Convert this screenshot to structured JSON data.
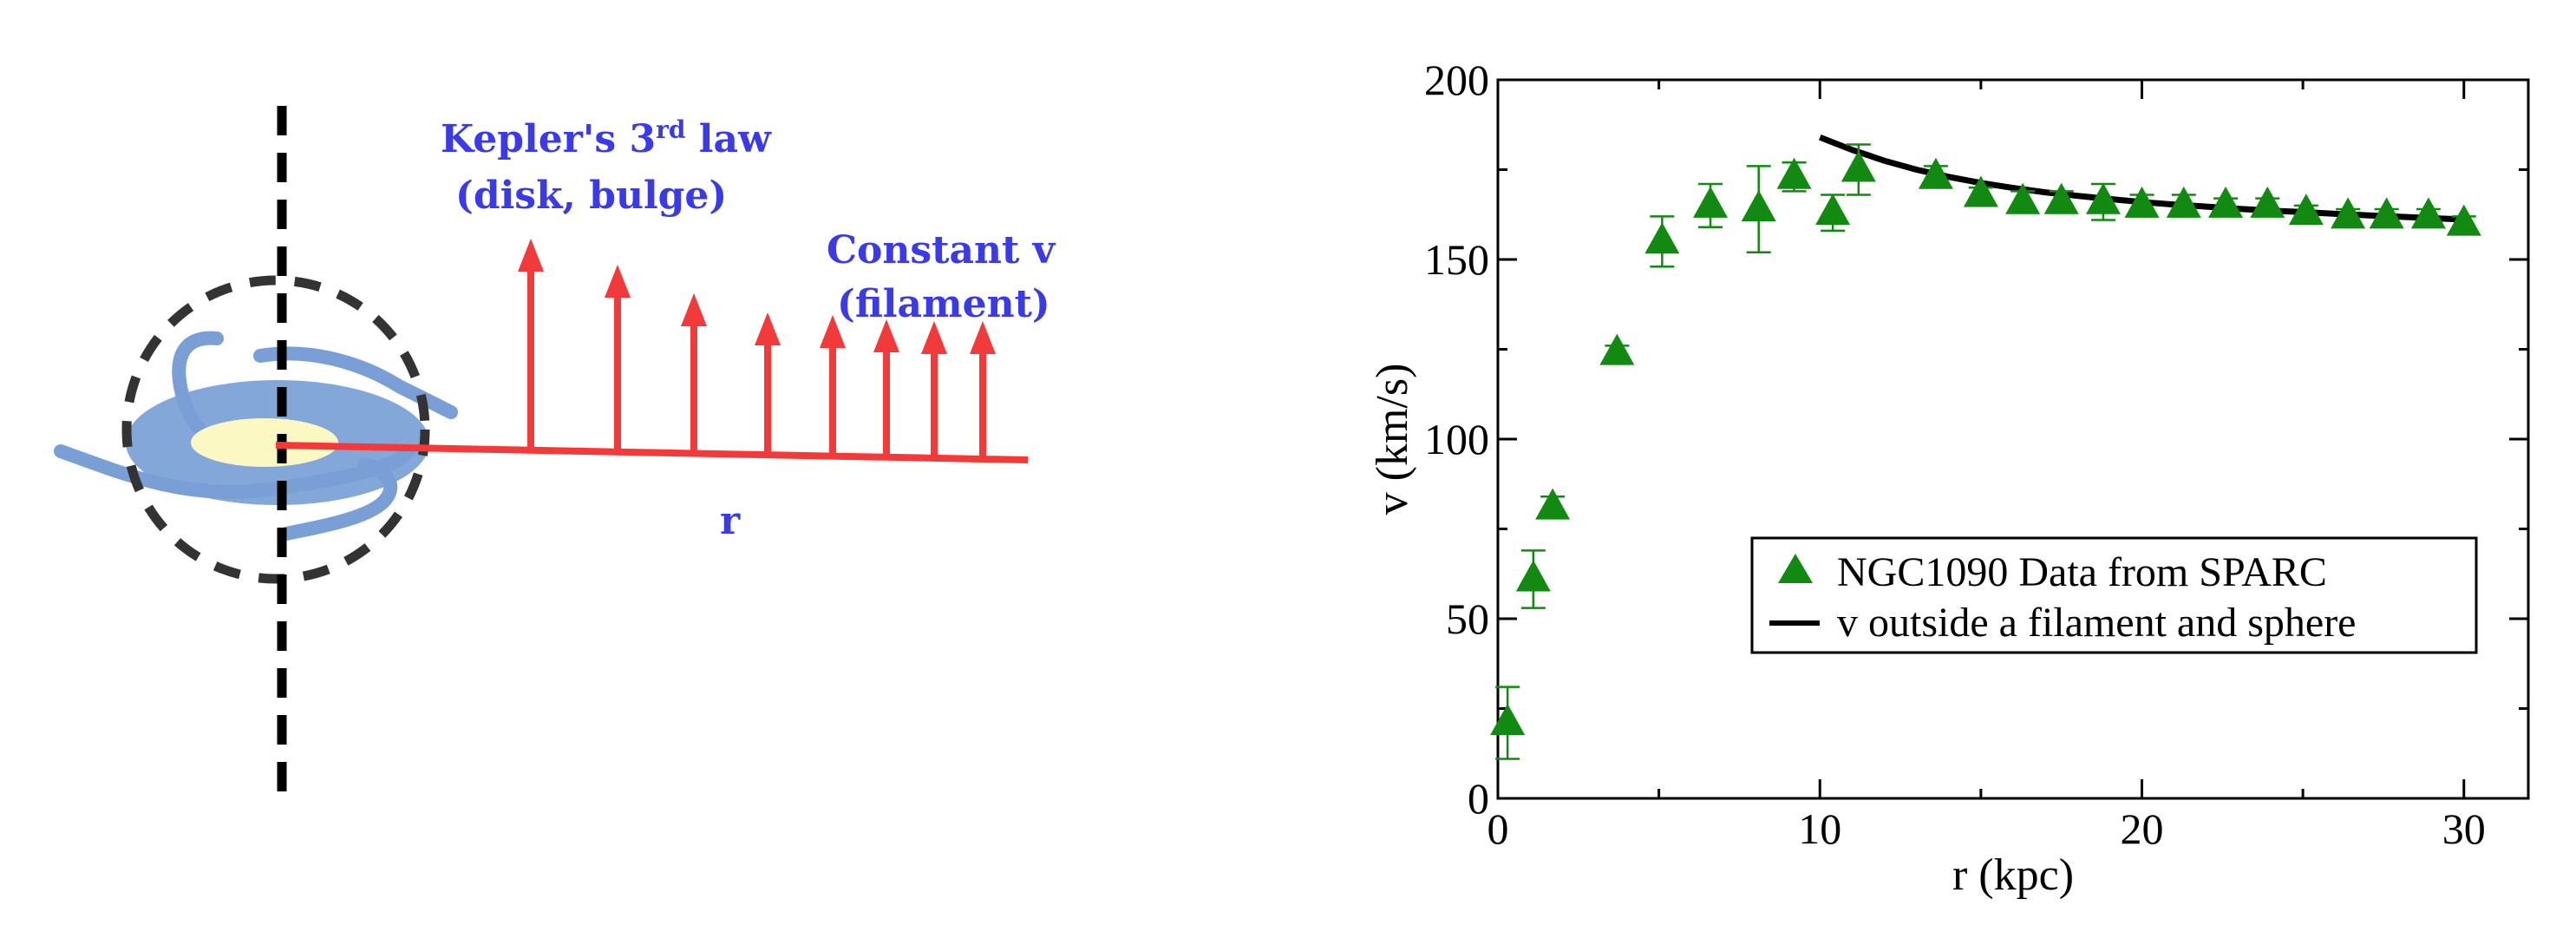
{
  "diagram": {
    "kepler_label_line1": "Kepler's 3",
    "kepler_label_sup": "rd",
    "kepler_label_line1_end": " law",
    "kepler_label_line2": "(disk, bulge)",
    "constant_label_line1": "Constant v",
    "constant_label_line2": "(filament)",
    "r_label": "r",
    "colors": {
      "arrow": "#f23a3a",
      "disk": "#7a9fd6",
      "bulge": "#fcf8c4",
      "circle": "#333333",
      "label": "#3a3ae8"
    }
  },
  "chart_data": {
    "type": "scatter",
    "xlabel": "r (kpc)",
    "ylabel": "v (km/s)",
    "xlim": [
      0,
      32
    ],
    "ylim": [
      0,
      200
    ],
    "xticks": [
      0,
      10,
      20,
      30
    ],
    "yticks": [
      0,
      50,
      100,
      150,
      200
    ],
    "legend_position": "lower-right",
    "grid": false,
    "series": [
      {
        "name": "NGC1090  Data from SPARC",
        "marker": "triangle",
        "color": "#128a12",
        "x": [
          0.3,
          1.1,
          1.7,
          3.7,
          5.1,
          6.6,
          8.1,
          9.2,
          10.4,
          11.2,
          13.6,
          15.0,
          16.3,
          17.5,
          18.8,
          20.0,
          21.3,
          22.6,
          23.9,
          25.1,
          26.4,
          27.6,
          28.9,
          30.0
        ],
        "y": [
          21,
          61,
          81,
          124,
          155,
          165,
          164,
          173,
          163,
          175,
          173,
          168,
          166,
          166,
          166,
          165,
          165,
          165,
          165,
          163,
          162,
          162,
          162,
          160
        ],
        "err": [
          10,
          8,
          3,
          2,
          7,
          6,
          12,
          4,
          5,
          7,
          3,
          2,
          3,
          3,
          5,
          3,
          3,
          2,
          2,
          2,
          2,
          2,
          2,
          2
        ]
      },
      {
        "name": "v outside a filament and sphere",
        "marker": "line",
        "color": "#000000",
        "x": [
          10,
          11,
          12,
          13,
          14,
          15,
          16,
          17,
          18,
          19,
          20,
          21,
          22,
          23,
          24,
          25,
          26,
          27,
          28,
          29,
          30
        ],
        "y": [
          184,
          180.5,
          177.5,
          175,
          173,
          171.3,
          169.9,
          168.7,
          167.7,
          166.8,
          166.0,
          165.3,
          164.7,
          164.1,
          163.6,
          163.2,
          162.7,
          162.3,
          161.9,
          161.5,
          161.1
        ]
      }
    ]
  }
}
